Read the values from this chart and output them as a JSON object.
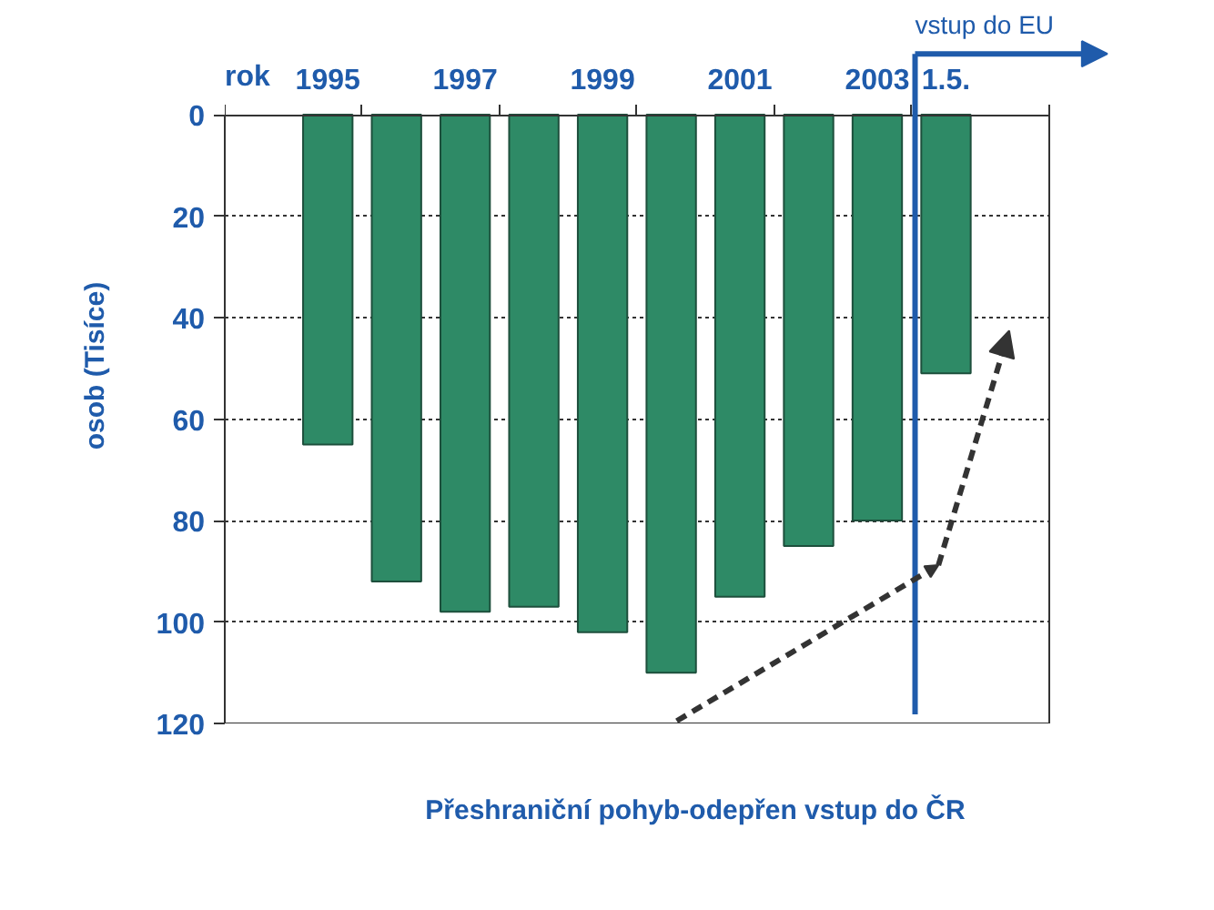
{
  "chart_data": {
    "type": "bar",
    "title": "Přeshraniční pohyb-odepřen vstup do ČR",
    "xlabel": "rok",
    "ylabel": "osob (Tisíce)",
    "categories": [
      null,
      "1995",
      null,
      "1997",
      null,
      "1999",
      null,
      "2001",
      null,
      "2003",
      "1.5.",
      null
    ],
    "values": [
      null,
      65,
      92,
      98,
      97,
      102,
      110,
      95,
      85,
      80,
      51,
      null
    ],
    "color": "#2e8a66",
    "ylim": [
      120,
      0
    ],
    "yticks": [
      0,
      20,
      40,
      60,
      80,
      100,
      120
    ],
    "grid": "y",
    "ref_lines": [
      {
        "axis": "x",
        "value": "1.5.",
        "label": "vstup do EU",
        "color": "#1f5bab"
      }
    ]
  }
}
